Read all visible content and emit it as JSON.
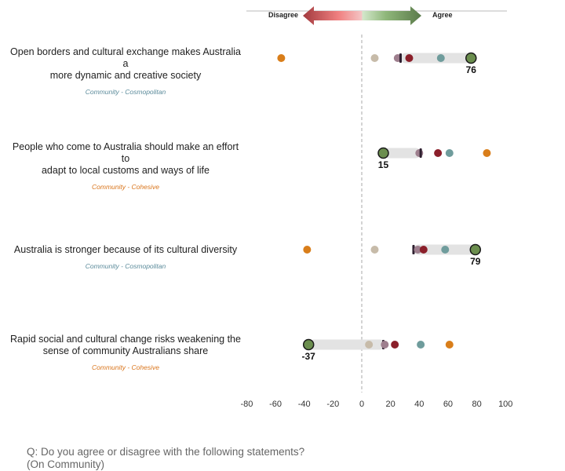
{
  "legend": {
    "disagree": "Disagree",
    "agree": "Agree"
  },
  "question": {
    "line1": "Q: Do you agree or disagree with the following statements?",
    "line2": "(On Community)"
  },
  "colors": {
    "highlight_fill": "#6b8e4e",
    "orange": "#d97e1a",
    "teal": "#6f9c9c",
    "darkred": "#8b1f2a",
    "mauve": "#9e7f8e",
    "beige": "#c7bba9",
    "dark": "#2e1f2f",
    "cosmopolitan": "#5a8a9a",
    "cohesive": "#d9741a"
  },
  "chart_data": {
    "type": "dot",
    "xlim": [
      -80,
      100
    ],
    "xticks": [
      -80,
      -60,
      -40,
      -20,
      0,
      20,
      40,
      60,
      80,
      100
    ],
    "rows": [
      {
        "statement": [
          "Open borders and cultural exchange makes Australia a",
          "more dynamic and creative society"
        ],
        "tag": "Community - Cosmopolitan",
        "tag_type": "cosmopolitan",
        "highlight": 76,
        "highlight_label": "76",
        "bar": [
          27,
          76
        ],
        "points": [
          {
            "value": -56,
            "color": "orange"
          },
          {
            "value": 9,
            "color": "beige"
          },
          {
            "value": 25,
            "color": "mauve"
          },
          {
            "value": 27,
            "color": "dark",
            "shape": "tick"
          },
          {
            "value": 33,
            "color": "darkred"
          },
          {
            "value": 55,
            "color": "teal"
          }
        ]
      },
      {
        "statement": [
          "People who come to Australia should make an effort to",
          "adapt to local customs and ways of life"
        ],
        "tag": "Community - Cohesive",
        "tag_type": "cohesive",
        "highlight": 15,
        "highlight_label": "15",
        "bar": [
          15,
          41
        ],
        "points": [
          {
            "value": 40,
            "color": "mauve"
          },
          {
            "value": 41,
            "color": "dark",
            "shape": "tick"
          },
          {
            "value": 53,
            "color": "darkred"
          },
          {
            "value": 61,
            "color": "teal"
          },
          {
            "value": 87,
            "color": "orange"
          }
        ]
      },
      {
        "statement": [
          "Australia is stronger because of its cultural diversity"
        ],
        "tag": "Community - Cosmopolitan",
        "tag_type": "cosmopolitan",
        "highlight": 79,
        "highlight_label": "79",
        "bar": [
          36,
          79
        ],
        "points": [
          {
            "value": -38,
            "color": "orange"
          },
          {
            "value": 9,
            "color": "beige"
          },
          {
            "value": 36,
            "color": "dark",
            "shape": "tick"
          },
          {
            "value": 39,
            "color": "mauve"
          },
          {
            "value": 43,
            "color": "darkred"
          },
          {
            "value": 58,
            "color": "teal"
          }
        ]
      },
      {
        "statement": [
          "Rapid social and cultural change risks weakening the",
          "sense of community Australians share"
        ],
        "tag": "Community - Cohesive",
        "tag_type": "cohesive",
        "highlight": -37,
        "highlight_label": "-37",
        "bar": [
          -37,
          16
        ],
        "points": [
          {
            "value": 5,
            "color": "beige"
          },
          {
            "value": 15,
            "color": "dark",
            "shape": "tick"
          },
          {
            "value": 16,
            "color": "mauve"
          },
          {
            "value": 23,
            "color": "darkred"
          },
          {
            "value": 41,
            "color": "teal"
          },
          {
            "value": 61,
            "color": "orange"
          }
        ]
      }
    ]
  }
}
